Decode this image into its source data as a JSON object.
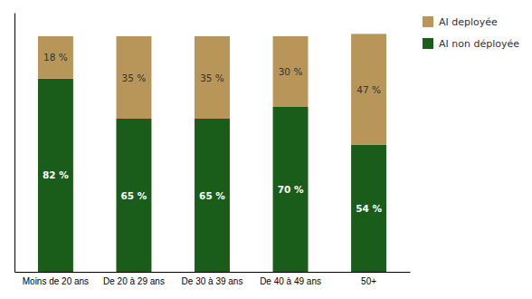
{
  "chart_data": {
    "type": "bar",
    "stacked": true,
    "categories": [
      "Moins de 20 ans",
      "De 20 à 29 ans",
      "De 30 à 39 ans",
      "De 40 à 49 ans",
      "50+"
    ],
    "series": [
      {
        "name": "AI non déployée",
        "color": "#1a5c1a",
        "values": [
          82,
          65,
          65,
          70,
          54
        ],
        "value_labels": [
          "82 %",
          "65 %",
          "65 %",
          "70 %",
          "54 %"
        ]
      },
      {
        "name": "AI deployée",
        "color": "#b8965a",
        "values": [
          18,
          35,
          35,
          30,
          47
        ],
        "value_labels": [
          "18 %",
          "35 %",
          "35 %",
          "30 %",
          "47 %"
        ]
      }
    ],
    "ylim": [
      0,
      110
    ],
    "data_labels": true,
    "tick_labels": "x",
    "grid": false,
    "legend": "upper right"
  }
}
